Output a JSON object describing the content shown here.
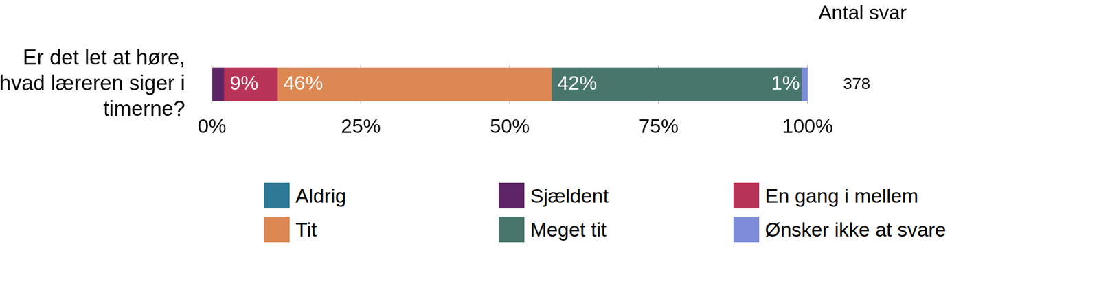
{
  "chart_data": {
    "type": "bar",
    "orientation": "horizontal",
    "stacked": true,
    "categories": [
      "Er det let at høre, hvad læreren siger i timerne?"
    ],
    "series": [
      {
        "name": "Aldrig",
        "color": "#2e7a96",
        "values": [
          0
        ],
        "value_labels": [
          null
        ]
      },
      {
        "name": "Sjældent",
        "color": "#5e2566",
        "values": [
          2
        ],
        "value_labels": [
          null
        ]
      },
      {
        "name": "En gang i mellem",
        "color": "#b83457",
        "values": [
          9
        ],
        "value_labels": [
          "9%"
        ]
      },
      {
        "name": "Tit",
        "color": "#dd8752",
        "values": [
          46
        ],
        "value_labels": [
          "46%"
        ]
      },
      {
        "name": "Meget tit",
        "color": "#48766d",
        "values": [
          42
        ],
        "value_labels": [
          "42%"
        ]
      },
      {
        "name": "Ønsker ikke at svare",
        "color": "#7f8cd9",
        "values": [
          1
        ],
        "value_labels": [
          "1%"
        ]
      }
    ],
    "xlim": [
      0,
      100
    ],
    "xticks": [
      {
        "value": 0,
        "label": "0%"
      },
      {
        "value": 25,
        "label": "25%"
      },
      {
        "value": 50,
        "label": "50%"
      },
      {
        "value": 75,
        "label": "75%"
      },
      {
        "value": 100,
        "label": "100%"
      }
    ],
    "grid": true,
    "data_labels": true,
    "legend": "bottom",
    "count_title": "Antal svar",
    "counts": [
      378
    ]
  }
}
